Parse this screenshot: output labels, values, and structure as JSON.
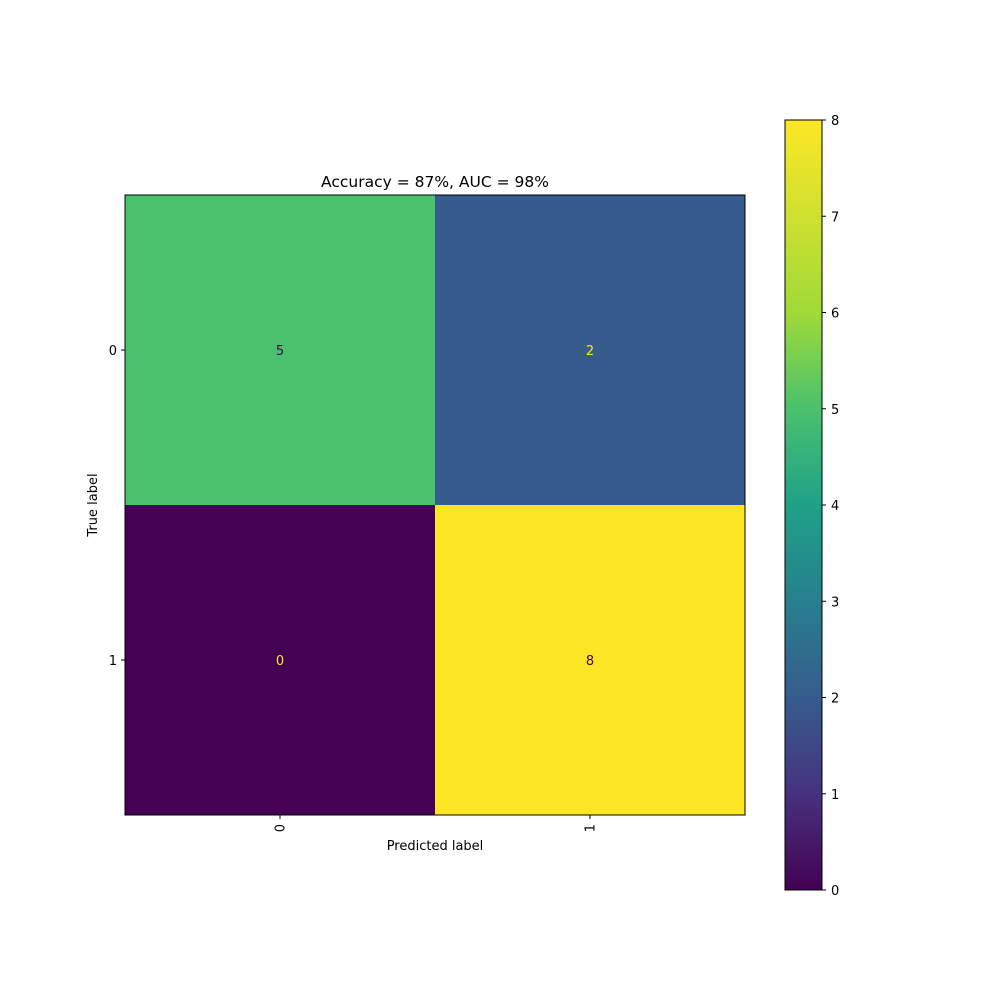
{
  "chart_data": {
    "type": "heatmap",
    "title": "Accuracy = 87%, AUC = 98%",
    "xlabel": "Predicted label",
    "ylabel": "True label",
    "x_categories": [
      "0",
      "1"
    ],
    "y_categories": [
      "0",
      "1"
    ],
    "values": [
      [
        5,
        2
      ],
      [
        0,
        8
      ]
    ],
    "colormap": "viridis",
    "colorbar": {
      "min": 0,
      "max": 8,
      "ticks": [
        "0",
        "1",
        "2",
        "3",
        "4",
        "5",
        "6",
        "7",
        "8"
      ]
    },
    "cell_text_colors": {
      "dark": "#fde725",
      "light": "#440154"
    }
  }
}
